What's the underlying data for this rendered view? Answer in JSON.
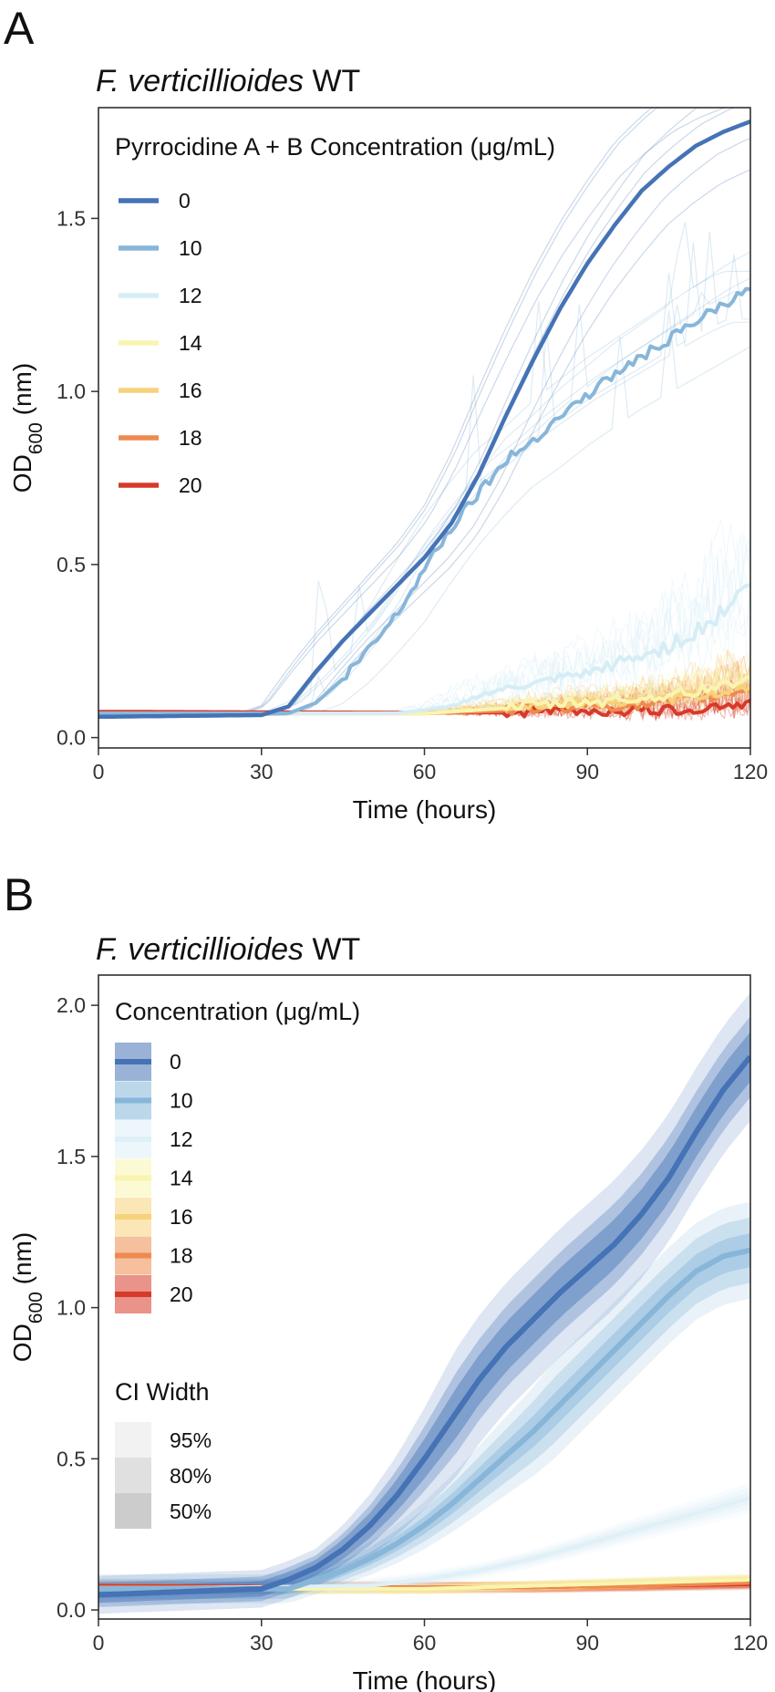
{
  "figure": {
    "panel_a_letter": "A",
    "panel_b_letter": "B"
  },
  "chart_data": [
    {
      "type": "line",
      "panel": "A",
      "title_italic": "F. verticillioides",
      "title_rest": " WT",
      "xlabel": "Time (hours)",
      "ylabel_main": "OD",
      "ylabel_sub": "600",
      "ylabel_unit": " (nm)",
      "xlim": [
        0,
        120
      ],
      "ylim": [
        -0.03,
        1.82
      ],
      "xticks": [
        0,
        30,
        60,
        90,
        120
      ],
      "yticks": [
        0.0,
        0.5,
        1.0,
        1.5
      ],
      "ytick_labels": [
        "0.0",
        "0.5",
        "1.0",
        "1.5"
      ],
      "legend_title": "Pyrrocidine A + B Concentration (μg/mL)",
      "legend_position": "top-left",
      "series": [
        {
          "name": "0",
          "color": "#4573b5",
          "x": [
            0,
            30,
            35,
            40,
            45,
            50,
            55,
            60,
            65,
            70,
            75,
            80,
            85,
            90,
            95,
            100,
            105,
            110,
            115,
            120
          ],
          "y": [
            0.06,
            0.065,
            0.09,
            0.19,
            0.28,
            0.36,
            0.44,
            0.52,
            0.62,
            0.76,
            0.93,
            1.09,
            1.24,
            1.37,
            1.48,
            1.58,
            1.65,
            1.71,
            1.75,
            1.78
          ]
        },
        {
          "name": "10",
          "color": "#87b6d9",
          "x": [
            0,
            35,
            40,
            45,
            50,
            55,
            60,
            65,
            70,
            75,
            80,
            85,
            90,
            95,
            100,
            105,
            110,
            115,
            120
          ],
          "y": [
            0.07,
            0.07,
            0.1,
            0.17,
            0.26,
            0.36,
            0.49,
            0.61,
            0.71,
            0.8,
            0.86,
            0.93,
            0.99,
            1.05,
            1.1,
            1.15,
            1.2,
            1.25,
            1.29
          ]
        },
        {
          "name": "12",
          "color": "#d6edf5",
          "x": [
            0,
            55,
            60,
            65,
            70,
            75,
            80,
            85,
            90,
            95,
            100,
            105,
            110,
            115,
            120
          ],
          "y": [
            0.07,
            0.07,
            0.08,
            0.09,
            0.12,
            0.14,
            0.15,
            0.17,
            0.18,
            0.21,
            0.23,
            0.26,
            0.3,
            0.36,
            0.44
          ]
        },
        {
          "name": "14",
          "color": "#f9f5b0",
          "x": [
            0,
            60,
            70,
            80,
            90,
            100,
            110,
            115,
            120
          ],
          "y": [
            0.07,
            0.07,
            0.08,
            0.09,
            0.1,
            0.11,
            0.13,
            0.15,
            0.17
          ]
        },
        {
          "name": "16",
          "color": "#f7d27a",
          "x": [
            0,
            60,
            70,
            80,
            90,
            100,
            110,
            115,
            120
          ],
          "y": [
            0.07,
            0.07,
            0.08,
            0.09,
            0.1,
            0.1,
            0.12,
            0.13,
            0.15
          ]
        },
        {
          "name": "18",
          "color": "#ef8a4f",
          "x": [
            0,
            60,
            70,
            80,
            90,
            100,
            105,
            110,
            115,
            120
          ],
          "y": [
            0.07,
            0.07,
            0.075,
            0.08,
            0.09,
            0.09,
            0.1,
            0.11,
            0.12,
            0.14
          ]
        },
        {
          "name": "20",
          "color": "#d73a2a",
          "x": [
            0,
            60,
            80,
            100,
            105,
            110,
            115,
            120
          ],
          "y": [
            0.075,
            0.072,
            0.072,
            0.075,
            0.075,
            0.08,
            0.09,
            0.095
          ]
        }
      ]
    },
    {
      "type": "area",
      "panel": "B",
      "title_italic": "F. verticillioides",
      "title_rest": " WT",
      "xlabel": "Time (hours)",
      "ylabel_main": "OD",
      "ylabel_sub": "600",
      "ylabel_unit": " (nm)",
      "xlim": [
        0,
        120
      ],
      "ylim": [
        -0.03,
        2.1
      ],
      "xticks": [
        0,
        30,
        60,
        90,
        120
      ],
      "yticks": [
        0.0,
        0.5,
        1.0,
        1.5,
        2.0
      ],
      "ytick_labels": [
        "0.0",
        "0.5",
        "1.0",
        "1.5",
        "2.0"
      ],
      "legend_title": "Concentration (μg/mL)",
      "ci_legend_title": "CI Width",
      "ci_levels": [
        {
          "label": "95%",
          "color": "#f2f2f2"
        },
        {
          "label": "80%",
          "color": "#e0e0e0"
        },
        {
          "label": "50%",
          "color": "#cccccc"
        }
      ],
      "series": [
        {
          "name": "0",
          "color": "#4573b5",
          "x": [
            0,
            30,
            35,
            40,
            45,
            50,
            55,
            60,
            65,
            70,
            75,
            80,
            85,
            90,
            95,
            100,
            105,
            110,
            115,
            120
          ],
          "y": [
            0.05,
            0.07,
            0.1,
            0.14,
            0.2,
            0.28,
            0.38,
            0.5,
            0.63,
            0.76,
            0.87,
            0.96,
            1.05,
            1.13,
            1.21,
            1.31,
            1.43,
            1.58,
            1.72,
            1.83
          ],
          "ci": [
            0.03,
            0.05,
            0.08
          ]
        },
        {
          "name": "10",
          "color": "#87b6d9",
          "x": [
            0,
            35,
            40,
            45,
            50,
            55,
            60,
            65,
            70,
            75,
            80,
            85,
            90,
            95,
            100,
            105,
            110,
            115,
            120
          ],
          "y": [
            0.07,
            0.07,
            0.1,
            0.13,
            0.17,
            0.22,
            0.28,
            0.35,
            0.43,
            0.51,
            0.59,
            0.68,
            0.77,
            0.86,
            0.95,
            1.04,
            1.12,
            1.17,
            1.19
          ],
          "ci": [
            0.02,
            0.04,
            0.06
          ]
        },
        {
          "name": "12",
          "color": "#dff0f7",
          "x": [
            0,
            50,
            60,
            70,
            80,
            90,
            100,
            110,
            120
          ],
          "y": [
            0.07,
            0.08,
            0.1,
            0.13,
            0.17,
            0.22,
            0.27,
            0.32,
            0.37
          ],
          "ci": [
            0.01,
            0.02,
            0.03
          ]
        },
        {
          "name": "14",
          "color": "#f9f5b0",
          "x": [
            0,
            60,
            80,
            100,
            120
          ],
          "y": [
            0.07,
            0.07,
            0.08,
            0.09,
            0.1
          ],
          "ci": [
            0.01,
            0.015,
            0.02
          ]
        },
        {
          "name": "16",
          "color": "#f7d27a",
          "x": [
            0,
            60,
            80,
            100,
            120
          ],
          "y": [
            0.07,
            0.07,
            0.08,
            0.09,
            0.1
          ],
          "ci": [
            0.01,
            0.015,
            0.02
          ]
        },
        {
          "name": "18",
          "color": "#ef8a4f",
          "x": [
            0,
            60,
            80,
            100,
            120
          ],
          "y": [
            0.075,
            0.075,
            0.075,
            0.08,
            0.09
          ],
          "ci": [
            0.01,
            0.015,
            0.02
          ]
        },
        {
          "name": "20",
          "color": "#d73a2a",
          "x": [
            0,
            60,
            80,
            100,
            120
          ],
          "y": [
            0.08,
            0.075,
            0.075,
            0.08,
            0.085
          ],
          "ci": [
            0.01,
            0.015,
            0.02
          ]
        }
      ]
    }
  ]
}
